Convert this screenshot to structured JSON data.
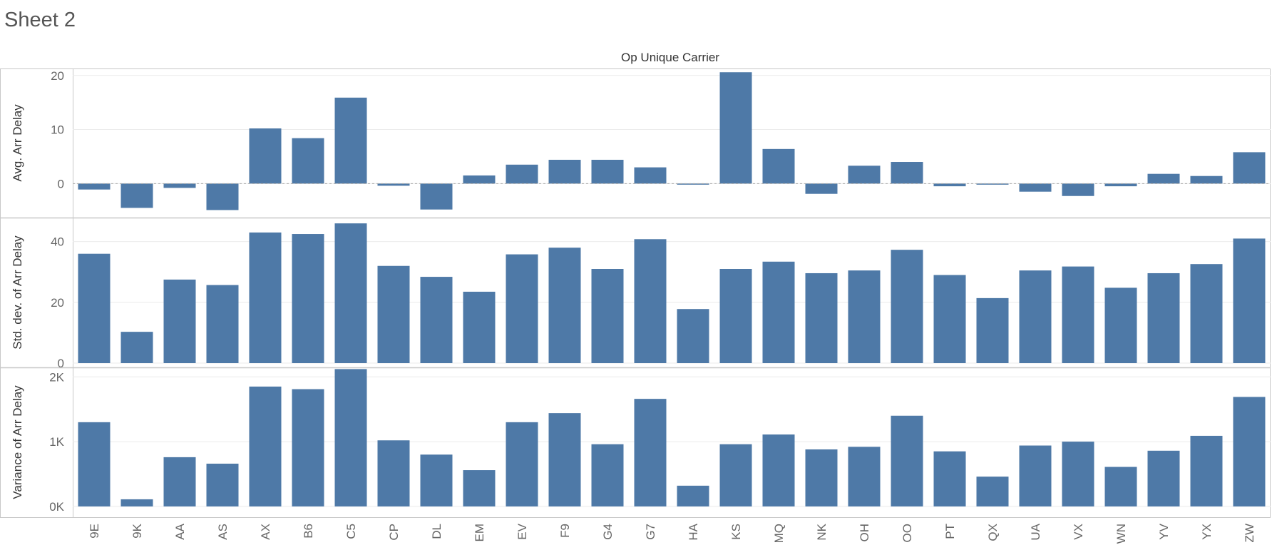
{
  "sheet": {
    "title": "Sheet 2"
  },
  "colors": {
    "bar": "#4e79a7",
    "grid": "#ebebeb",
    "border": "#c8c8c8",
    "tick_text": "#666666",
    "label_text": "#333333"
  },
  "chart_data": {
    "type": "bar",
    "title": "Op Unique Carrier",
    "categories": [
      "9E",
      "9K",
      "AA",
      "AS",
      "AX",
      "B6",
      "C5",
      "CP",
      "DL",
      "EM",
      "EV",
      "F9",
      "G4",
      "G7",
      "HA",
      "KS",
      "MQ",
      "NK",
      "OH",
      "OO",
      "PT",
      "QX",
      "UA",
      "VX",
      "WN",
      "YV",
      "YX",
      "ZW"
    ],
    "panels": [
      {
        "ylabel": "Avg. Arr Delay",
        "ylim": [
          -5.5,
          20.5
        ],
        "ticks": [
          0,
          10,
          20
        ],
        "tick_labels": [
          "0",
          "10",
          "20"
        ],
        "values": [
          -1.1,
          -4.5,
          -0.8,
          -4.9,
          10.2,
          8.4,
          15.9,
          -0.4,
          -4.8,
          1.5,
          3.5,
          4.4,
          4.4,
          3.0,
          -0.2,
          20.6,
          6.4,
          -1.9,
          3.3,
          4.0,
          -0.5,
          -0.2,
          -1.5,
          -2.3,
          -0.5,
          1.8,
          1.4,
          5.8
        ],
        "zero_line": true
      },
      {
        "ylabel": "Std. dev. of Arr Delay",
        "ylim": [
          0,
          46.5
        ],
        "ticks": [
          0,
          20,
          40
        ],
        "tick_labels": [
          "0",
          "20",
          "40"
        ],
        "values": [
          36.0,
          10.3,
          27.5,
          25.7,
          43.0,
          42.5,
          46.0,
          32.0,
          28.4,
          23.5,
          35.8,
          38.0,
          31.0,
          40.8,
          17.8,
          31.0,
          33.4,
          29.6,
          30.5,
          37.3,
          29.0,
          21.4,
          30.5,
          31.8,
          24.8,
          29.6,
          32.6,
          41.0
        ],
        "zero_line": false
      },
      {
        "ylabel": "Variance of Arr Delay",
        "ylim": [
          -100,
          2080
        ],
        "ticks": [
          0,
          1000,
          2000
        ],
        "tick_labels": [
          "0K",
          "1K",
          "2K"
        ],
        "values": [
          1300,
          110,
          760,
          660,
          1850,
          1810,
          2120,
          1020,
          800,
          560,
          1300,
          1440,
          960,
          1660,
          320,
          960,
          1110,
          880,
          920,
          1400,
          850,
          460,
          940,
          1000,
          610,
          860,
          1090,
          1690
        ],
        "zero_line": false
      }
    ]
  }
}
